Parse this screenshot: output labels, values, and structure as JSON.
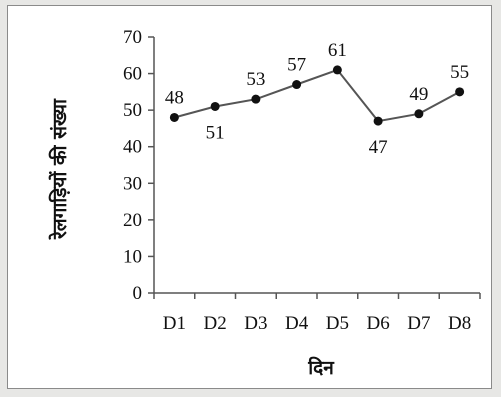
{
  "chart_data": {
    "type": "line",
    "title": "",
    "xlabel": "दिन",
    "ylabel": "रेलगाड़ियों की संख्या",
    "categories": [
      "D1",
      "D2",
      "D3",
      "D4",
      "D5",
      "D6",
      "D7",
      "D8"
    ],
    "series": [
      {
        "values": [
          48,
          51,
          53,
          57,
          61,
          47,
          49,
          55
        ]
      }
    ],
    "data_labels": [
      "48",
      "51",
      "53",
      "57",
      "61",
      "47",
      "49",
      "55"
    ],
    "label_placement": [
      "above",
      "below",
      "above",
      "above",
      "above",
      "below",
      "above",
      "above"
    ],
    "ylim": [
      0,
      70
    ],
    "yticks": [
      0,
      10,
      20,
      30,
      40,
      50,
      60,
      70
    ],
    "ytick_labels": [
      "0",
      "10",
      "20",
      "30",
      "40",
      "50",
      "60",
      "70"
    ],
    "grid": false,
    "legend": "none",
    "line_color": "#555555",
    "marker_color": "#111111",
    "axis_color": "#555555"
  }
}
